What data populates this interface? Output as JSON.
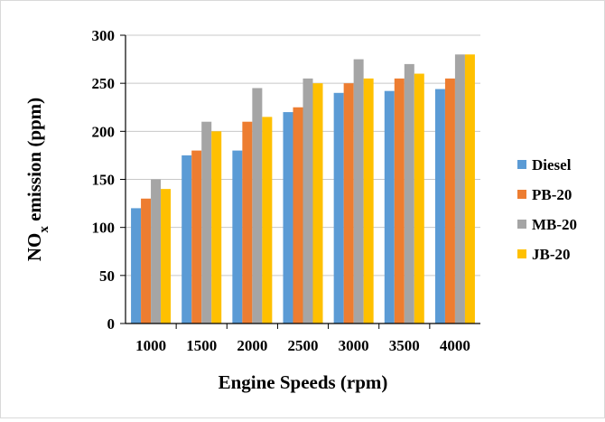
{
  "chart_data": {
    "type": "bar",
    "title": "",
    "xlabel": "Engine Speeds (rpm)",
    "ylabel": {
      "prefix": "NO",
      "sub": "x",
      "suffix": " emission (ppm)"
    },
    "categories": [
      "1000",
      "1500",
      "2000",
      "2500",
      "3000",
      "3500",
      "4000"
    ],
    "ylim": [
      0,
      300
    ],
    "yticks": [
      0,
      50,
      100,
      150,
      200,
      250,
      300
    ],
    "grid": true,
    "legend_position": "right",
    "series": [
      {
        "name": "Diesel",
        "color": "#5b9bd5",
        "values": [
          120,
          175,
          180,
          220,
          240,
          242,
          244
        ]
      },
      {
        "name": "PB-20",
        "color": "#ed7d31",
        "values": [
          130,
          180,
          210,
          225,
          250,
          255,
          255
        ]
      },
      {
        "name": "MB-20",
        "color": "#a5a5a5",
        "values": [
          150,
          210,
          245,
          255,
          275,
          270,
          280
        ]
      },
      {
        "name": "JB-20",
        "color": "#ffc000",
        "values": [
          140,
          200,
          215,
          250,
          255,
          260,
          280
        ]
      }
    ]
  }
}
